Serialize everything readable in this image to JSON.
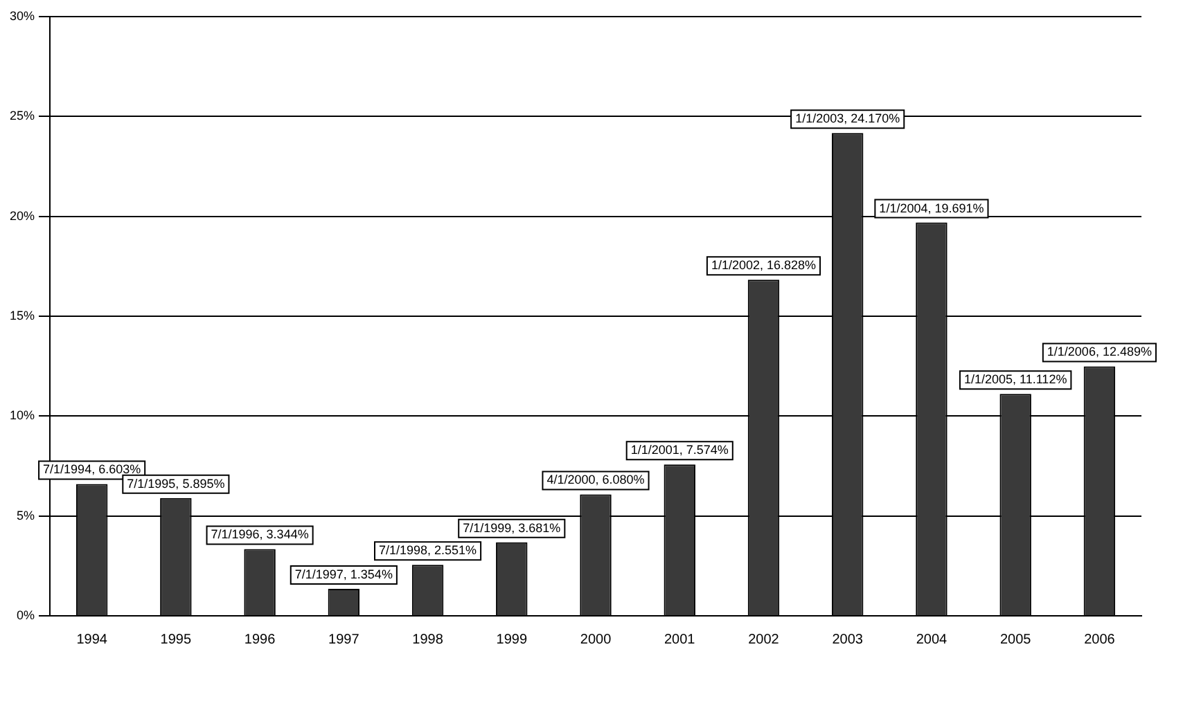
{
  "chart_data": {
    "type": "bar",
    "categories": [
      "1994",
      "1995",
      "1996",
      "1997",
      "1998",
      "1999",
      "2000",
      "2001",
      "2002",
      "2003",
      "2004",
      "2005",
      "2006"
    ],
    "values": [
      6.603,
      5.895,
      3.344,
      1.354,
      2.551,
      3.681,
      6.08,
      7.574,
      16.828,
      24.17,
      19.691,
      11.112,
      12.489
    ],
    "value_labels": [
      "7/1/1994, 6.603%",
      "7/1/1995, 5.895%",
      "7/1/1996, 3.344%",
      "7/1/1997, 1.354%",
      "7/1/1998, 2.551%",
      "7/1/1999, 3.681%",
      "4/1/2000, 6.080%",
      "1/1/2001, 7.574%",
      "1/1/2002, 16.828%",
      "1/1/2003, 24.170%",
      "1/1/2004, 19.691%",
      "1/1/2005, 11.112%",
      "1/1/2006, 12.489%"
    ],
    "color": "#3a3a3a",
    "ylim": [
      0,
      30
    ],
    "yticks": [
      {
        "value": 0,
        "label": "0%"
      },
      {
        "value": 5,
        "label": "5%"
      },
      {
        "value": 10,
        "label": "10%"
      },
      {
        "value": 15,
        "label": "15%"
      },
      {
        "value": 20,
        "label": "20%"
      },
      {
        "value": 25,
        "label": "25%"
      },
      {
        "value": 30,
        "label": "30%"
      }
    ],
    "grid": "y",
    "legend": false
  }
}
